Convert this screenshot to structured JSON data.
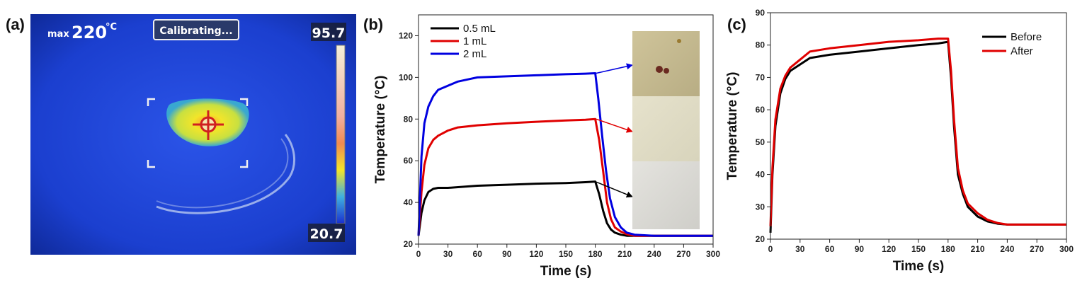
{
  "panels": {
    "a": "(a)",
    "b": "(b)",
    "c": "(c)"
  },
  "thermal": {
    "max_label": "max",
    "max_value": "220",
    "max_unit": "°C",
    "status_badge": "Calibrating...",
    "scale_top": "95.7",
    "scale_bottom": "20.7",
    "colors": {
      "background": "#1a3fd6",
      "hot_outer": "#e8e81a",
      "hot_core": "#f08020"
    }
  },
  "chart_data": [
    {
      "type": "line",
      "panel": "(b)",
      "xlabel": "Time (s)",
      "ylabel": "Temperature (°C)",
      "xlim": [
        0,
        300
      ],
      "ylim": [
        20,
        130
      ],
      "xticks": [
        0,
        30,
        60,
        90,
        120,
        150,
        180,
        210,
        240,
        270,
        300
      ],
      "yticks": [
        20,
        40,
        60,
        80,
        100,
        120
      ],
      "legend_position": "top-left",
      "series": [
        {
          "name": "0.5 mL",
          "color": "#000000",
          "x": [
            0,
            3,
            6,
            10,
            15,
            20,
            30,
            60,
            90,
            120,
            150,
            170,
            180,
            184,
            188,
            192,
            196,
            200,
            206,
            212,
            220,
            240,
            300
          ],
          "y": [
            24,
            35,
            41,
            45,
            46.5,
            47,
            47,
            48,
            48.5,
            49,
            49.3,
            49.7,
            50,
            44,
            36,
            30,
            27,
            25.5,
            24.5,
            24,
            24,
            24,
            24
          ]
        },
        {
          "name": "1 mL",
          "color": "#e00000",
          "x": [
            0,
            3,
            6,
            10,
            15,
            20,
            30,
            40,
            60,
            90,
            120,
            150,
            170,
            180,
            184,
            188,
            192,
            196,
            200,
            206,
            212,
            220,
            240,
            300
          ],
          "y": [
            24,
            45,
            58,
            66,
            70,
            72,
            74.5,
            76,
            77,
            78,
            78.7,
            79.3,
            79.7,
            80,
            70,
            55,
            40,
            32,
            28,
            26,
            24.8,
            24,
            24,
            24
          ]
        },
        {
          "name": "2 mL",
          "color": "#0000e0",
          "x": [
            0,
            3,
            6,
            10,
            15,
            20,
            30,
            40,
            50,
            60,
            90,
            120,
            150,
            170,
            180,
            183,
            187,
            191,
            195,
            200,
            206,
            212,
            220,
            240,
            300
          ],
          "y": [
            24,
            62,
            78,
            86,
            91,
            94,
            96,
            98,
            99,
            100,
            100.5,
            101,
            101.5,
            101.8,
            102,
            90,
            72,
            55,
            42,
            33,
            28,
            25.5,
            24.5,
            24,
            24
          ]
        }
      ]
    },
    {
      "type": "line",
      "panel": "(c)",
      "xlabel": "Time (s)",
      "ylabel": "Temperature (°C)",
      "xlim": [
        0,
        300
      ],
      "ylim": [
        20,
        90
      ],
      "xticks": [
        0,
        30,
        60,
        90,
        120,
        150,
        180,
        210,
        240,
        270,
        300
      ],
      "yticks": [
        20,
        30,
        40,
        50,
        60,
        70,
        80,
        90
      ],
      "legend_position": "top-right",
      "series": [
        {
          "name": "Before",
          "color": "#000000",
          "x": [
            0,
            2,
            5,
            10,
            15,
            20,
            30,
            40,
            60,
            90,
            120,
            150,
            170,
            180,
            183,
            186,
            190,
            195,
            200,
            210,
            220,
            230,
            240,
            300
          ],
          "y": [
            22,
            40,
            55,
            65,
            69.5,
            72,
            74,
            76,
            77,
            78,
            79,
            80,
            80.5,
            81,
            70,
            55,
            40,
            34,
            30,
            27,
            25.5,
            24.8,
            24.5,
            24.5
          ]
        },
        {
          "name": "After",
          "color": "#e00000",
          "x": [
            0,
            2,
            5,
            10,
            15,
            20,
            30,
            40,
            60,
            90,
            120,
            150,
            170,
            180,
            183,
            186,
            190,
            195,
            200,
            210,
            220,
            230,
            240,
            300
          ],
          "y": [
            24,
            42,
            57,
            66.5,
            70.5,
            73,
            75.5,
            78,
            79,
            80,
            81,
            81.5,
            82,
            82,
            72,
            57,
            42,
            35,
            31,
            28,
            26,
            25,
            24.5,
            24.5
          ]
        }
      ]
    }
  ]
}
